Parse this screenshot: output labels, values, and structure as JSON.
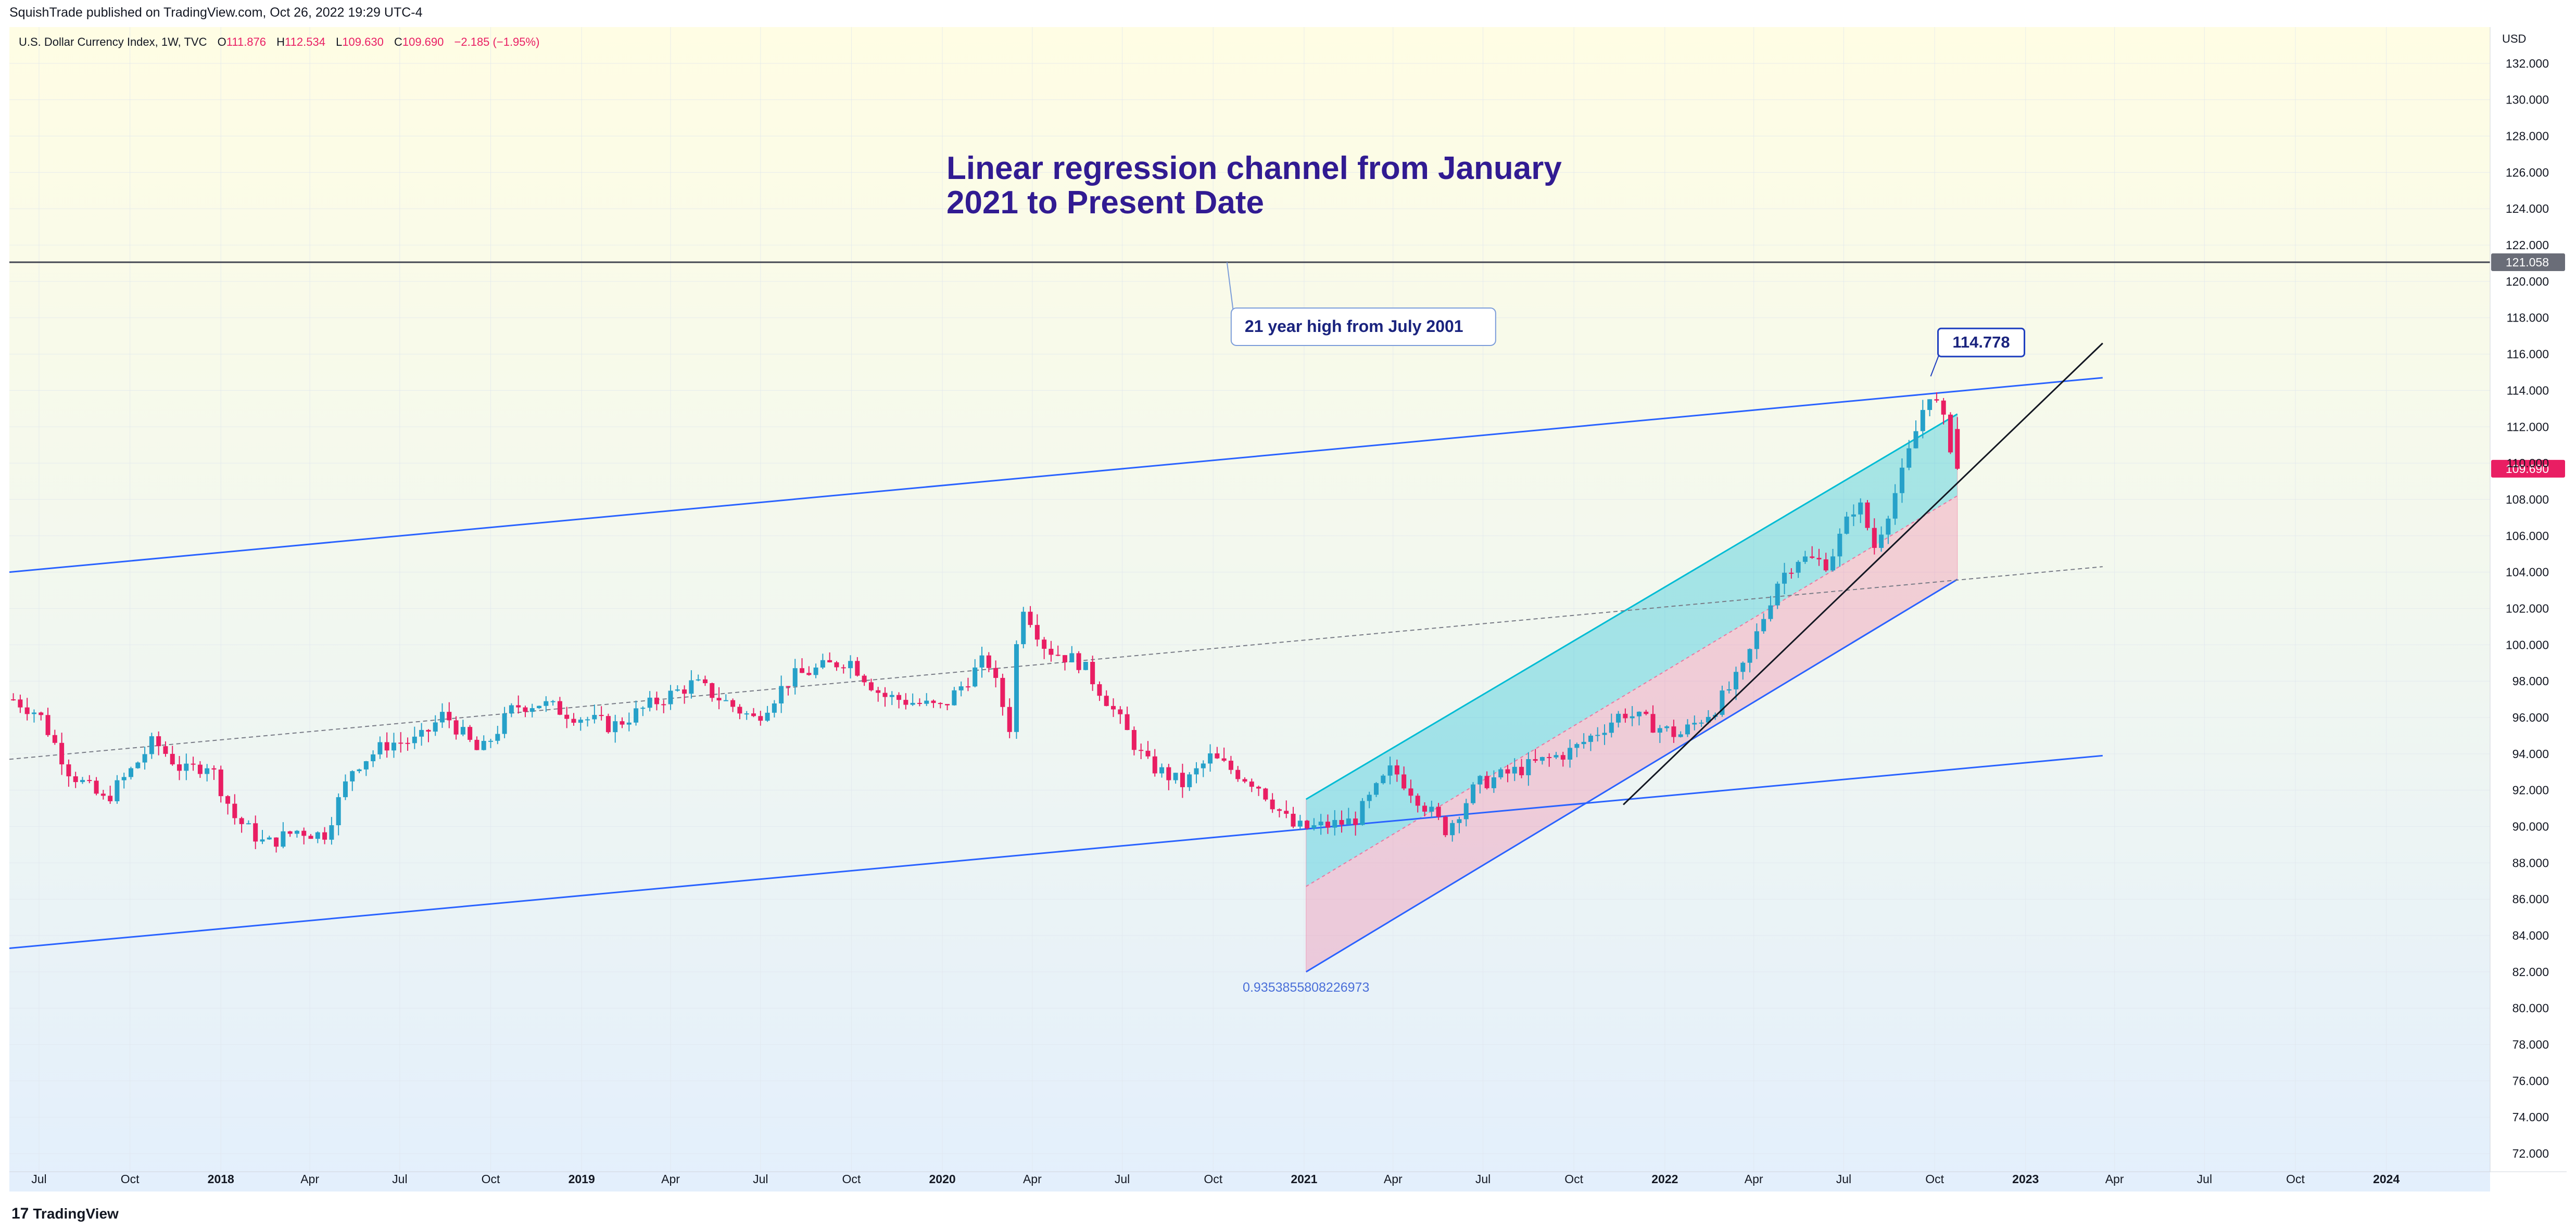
{
  "header": {
    "publisher": "SquishTrade published on TradingView.com, Oct 26, 2022 19:29 UTC-4"
  },
  "footer": {
    "logo_text": "TradingView",
    "logo_mark": "17"
  },
  "colors": {
    "up": "#26a69a",
    "down": "#ef5350",
    "up_candle": "#26a1c9",
    "down_candle": "#e91e63",
    "regression_upper": "#00bcd4",
    "regression_lower": "#f06292",
    "channel_line": "#2962ff",
    "title": "#311b92"
  },
  "chart_data": {
    "type": "candlestick",
    "symbol_line": {
      "name": "U.S. Dollar Currency Index, 1W, TVC",
      "o_label": "O",
      "o_value": "111.876",
      "h_label": "H",
      "h_value": "112.534",
      "l_label": "L",
      "l_value": "109.630",
      "c_label": "C",
      "c_value": "109.690",
      "change": "−2.185 (−1.95%)"
    },
    "currency": "USD",
    "ylim": [
      71,
      134
    ],
    "y_ticks": [
      "72.000",
      "74.000",
      "76.000",
      "78.000",
      "80.000",
      "82.000",
      "84.000",
      "86.000",
      "88.000",
      "90.000",
      "92.000",
      "94.000",
      "96.000",
      "98.000",
      "100.000",
      "102.000",
      "104.000",
      "106.000",
      "108.000",
      "110.000",
      "112.000",
      "114.000",
      "116.000",
      "118.000",
      "120.000",
      "122.000",
      "124.000",
      "126.000",
      "128.000",
      "130.000",
      "132.000"
    ],
    "x_range": [
      "2017-06-01",
      "2024-04-15"
    ],
    "x_ticks": [
      {
        "date": "2017-07-01",
        "label": "Jul",
        "bold": false
      },
      {
        "date": "2017-10-01",
        "label": "Oct",
        "bold": false
      },
      {
        "date": "2018-01-01",
        "label": "2018",
        "bold": true
      },
      {
        "date": "2018-04-01",
        "label": "Apr",
        "bold": false
      },
      {
        "date": "2018-07-01",
        "label": "Jul",
        "bold": false
      },
      {
        "date": "2018-10-01",
        "label": "Oct",
        "bold": false
      },
      {
        "date": "2019-01-01",
        "label": "2019",
        "bold": true
      },
      {
        "date": "2019-04-01",
        "label": "Apr",
        "bold": false
      },
      {
        "date": "2019-07-01",
        "label": "Jul",
        "bold": false
      },
      {
        "date": "2019-10-01",
        "label": "Oct",
        "bold": false
      },
      {
        "date": "2020-01-01",
        "label": "2020",
        "bold": true
      },
      {
        "date": "2020-04-01",
        "label": "Apr",
        "bold": false
      },
      {
        "date": "2020-07-01",
        "label": "Jul",
        "bold": false
      },
      {
        "date": "2020-10-01",
        "label": "Oct",
        "bold": false
      },
      {
        "date": "2021-01-01",
        "label": "2021",
        "bold": true
      },
      {
        "date": "2021-04-01",
        "label": "Apr",
        "bold": false
      },
      {
        "date": "2021-07-01",
        "label": "Jul",
        "bold": false
      },
      {
        "date": "2021-10-01",
        "label": "Oct",
        "bold": false
      },
      {
        "date": "2022-01-01",
        "label": "2022",
        "bold": true
      },
      {
        "date": "2022-04-01",
        "label": "Apr",
        "bold": false
      },
      {
        "date": "2022-07-01",
        "label": "Jul",
        "bold": false
      },
      {
        "date": "2022-10-01",
        "label": "Oct",
        "bold": false
      },
      {
        "date": "2023-01-01",
        "label": "2023",
        "bold": true
      },
      {
        "date": "2023-04-01",
        "label": "Apr",
        "bold": false
      },
      {
        "date": "2023-07-01",
        "label": "Jul",
        "bold": false
      },
      {
        "date": "2023-10-01",
        "label": "Oct",
        "bold": false
      },
      {
        "date": "2024-01-01",
        "label": "2024",
        "bold": true
      }
    ],
    "price_path": [
      [
        "2017-06-05",
        97.0
      ],
      [
        "2017-07-01",
        96.2
      ],
      [
        "2017-08-01",
        93.0
      ],
      [
        "2017-09-05",
        91.4
      ],
      [
        "2017-10-01",
        93.0
      ],
      [
        "2017-10-25",
        94.7
      ],
      [
        "2017-11-25",
        93.0
      ],
      [
        "2017-12-20",
        93.5
      ],
      [
        "2018-01-15",
        90.5
      ],
      [
        "2018-02-15",
        89.0
      ],
      [
        "2018-03-20",
        89.8
      ],
      [
        "2018-04-15",
        89.5
      ],
      [
        "2018-05-15",
        93.3
      ],
      [
        "2018-06-20",
        94.6
      ],
      [
        "2018-07-20",
        94.7
      ],
      [
        "2018-08-15",
        96.2
      ],
      [
        "2018-09-20",
        94.0
      ],
      [
        "2018-10-25",
        96.6
      ],
      [
        "2018-11-20",
        96.8
      ],
      [
        "2018-12-20",
        96.2
      ],
      [
        "2019-02-01",
        95.5
      ],
      [
        "2019-03-15",
        96.8
      ],
      [
        "2019-04-25",
        97.9
      ],
      [
        "2019-06-25",
        95.9
      ],
      [
        "2019-08-01",
        98.2
      ],
      [
        "2019-09-28",
        99.2
      ],
      [
        "2019-11-01",
        97.2
      ],
      [
        "2019-12-31",
        96.5
      ],
      [
        "2020-02-15",
        99.3
      ],
      [
        "2020-03-09",
        95.5
      ],
      [
        "2020-03-20",
        102.5
      ],
      [
        "2020-04-15",
        99.8
      ],
      [
        "2020-05-20",
        99.0
      ],
      [
        "2020-06-15",
        97.0
      ],
      [
        "2020-07-25",
        93.5
      ],
      [
        "2020-09-01",
        92.3
      ],
      [
        "2020-09-28",
        93.8
      ],
      [
        "2020-11-15",
        92.3
      ],
      [
        "2020-12-20",
        90.0
      ],
      [
        "2021-01-06",
        89.9
      ],
      [
        "2021-02-20",
        90.3
      ],
      [
        "2021-03-31",
        93.2
      ],
      [
        "2021-05-25",
        89.8
      ],
      [
        "2021-06-25",
        92.3
      ],
      [
        "2021-08-20",
        93.4
      ],
      [
        "2021-09-30",
        94.2
      ],
      [
        "2021-11-20",
        96.3
      ],
      [
        "2022-01-15",
        95.0
      ],
      [
        "2022-02-20",
        96.5
      ],
      [
        "2022-03-20",
        98.5
      ],
      [
        "2022-04-25",
        103.5
      ],
      [
        "2022-05-15",
        104.8
      ],
      [
        "2022-06-15",
        104.5
      ],
      [
        "2022-07-15",
        108.0
      ],
      [
        "2022-08-01",
        105.4
      ],
      [
        "2022-08-30",
        109.5
      ],
      [
        "2022-09-25",
        114.0
      ],
      [
        "2022-10-07",
        112.8
      ],
      [
        "2022-10-24",
        109.7
      ]
    ],
    "last_price": 109.69,
    "last_price_label": "109.690",
    "horizontal_line": {
      "value": 121.058,
      "label": "121.058"
    },
    "outer_channel": {
      "upper": {
        "x": [
          "2017-06-01",
          "2023-03-20"
        ],
        "y": [
          104.0,
          114.7
        ]
      },
      "middle": {
        "x": [
          "2017-06-01",
          "2023-03-20"
        ],
        "y": [
          93.7,
          104.3
        ]
      },
      "lower": {
        "x": [
          "2017-06-01",
          "2023-03-20"
        ],
        "y": [
          83.3,
          93.9
        ]
      }
    },
    "regression_channel": {
      "x": [
        "2021-01-03",
        "2022-10-24"
      ],
      "upper": [
        91.5,
        112.7
      ],
      "middle": [
        86.7,
        108.2
      ],
      "lower": [
        82.0,
        103.6
      ],
      "coefficient_label": "0.9353855808226973"
    },
    "trend_line": {
      "x": [
        "2021-11-20",
        "2023-03-20"
      ],
      "y": [
        91.2,
        116.6
      ]
    },
    "annotations": {
      "title": "Linear regression channel from January 2021 to Present Date",
      "title_lines": [
        "Linear regression channel from January",
        "2021 to Present Date"
      ],
      "callout_text": "21 year high from July 2001",
      "callout_anchor": {
        "x": "2020-10-15",
        "y": 121.058
      },
      "high_label": "114.778",
      "high_anchor": {
        "x": "2022-09-27",
        "y": 114.778
      }
    }
  }
}
